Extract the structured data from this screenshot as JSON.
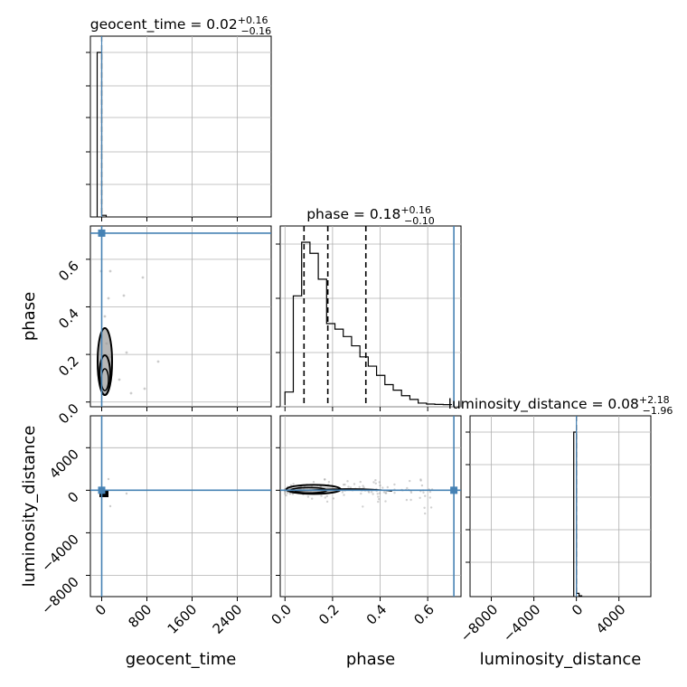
{
  "chart_data": {
    "type": "corner",
    "parameters": [
      "geocent_time",
      "phase",
      "luminosity_distance"
    ],
    "titles": [
      {
        "name": "geocent_time",
        "median": "0.02",
        "plus": "+0.16",
        "minus": "−0.16"
      },
      {
        "name": "phase",
        "median": "0.18",
        "plus": "+0.16",
        "minus": "−0.10"
      },
      {
        "name": "luminosity_distance",
        "median": "0.08",
        "plus": "+2.18",
        "minus": "−1.96"
      }
    ],
    "axis_labels": {
      "x": [
        "geocent_time",
        "phase",
        "luminosity_distance"
      ],
      "y": [
        "phase",
        "luminosity_distance"
      ]
    },
    "ranges": {
      "geocent_time": [
        -200,
        3000
      ],
      "phase": [
        -0.02,
        0.74
      ],
      "luminosity_distance": [
        -10000,
        7000
      ]
    },
    "ticks": {
      "geocent_time": {
        "values": [
          0,
          800,
          1600,
          2400
        ],
        "labels": [
          "0",
          "800",
          "1600",
          "2400"
        ]
      },
      "phase": {
        "values": [
          0.0,
          0.2,
          0.4,
          0.6
        ],
        "labels": [
          "0.0",
          "0.2",
          "0.4",
          "0.6"
        ]
      },
      "phase_y": {
        "values": [
          0.0,
          0.2,
          0.4,
          0.6
        ],
        "labels": [
          "0.0",
          "0.2",
          "0.4",
          "0.6"
        ]
      },
      "luminosity_distance_y": {
        "values": [
          -8000,
          -4000,
          0,
          4000
        ],
        "labels": [
          "−8000",
          "−4000",
          "0",
          "4000"
        ]
      },
      "luminosity_distance_x": {
        "values": [
          -8000,
          -4000,
          0,
          4000
        ],
        "labels": [
          "−8000",
          "−4000",
          "0",
          "4000"
        ]
      }
    },
    "truths": {
      "geocent_time": 0,
      "phase": 0.71,
      "luminosity_distance": 0
    },
    "quantiles": {
      "phase": [
        0.08,
        0.18,
        0.34
      ],
      "geocent_time": [
        0
      ],
      "luminosity_distance": [
        0
      ]
    },
    "hist_geocent_time": {
      "bin_edges": [
        -80,
        0,
        80
      ],
      "values": [
        1.0,
        0.01
      ]
    },
    "hist_phase": {
      "bin_edges": [
        0.0,
        0.035,
        0.07,
        0.105,
        0.14,
        0.175,
        0.21,
        0.245,
        0.28,
        0.315,
        0.35,
        0.385,
        0.42,
        0.455,
        0.49,
        0.525,
        0.56,
        0.595,
        0.63,
        0.665,
        0.7
      ],
      "values": [
        0.07,
        0.59,
        0.88,
        0.82,
        0.68,
        0.44,
        0.41,
        0.37,
        0.32,
        0.26,
        0.21,
        0.16,
        0.11,
        0.08,
        0.05,
        0.03,
        0.01,
        0.005,
        0.003,
        0.002
      ]
    },
    "hist_luminosity_distance": {
      "bin_edges": [
        -250,
        0,
        250,
        500
      ],
      "values": [
        1.0,
        0.02,
        0.005
      ]
    },
    "grid": true,
    "colors": {
      "truth": "#4682b4",
      "hist": "#000000",
      "grid": "#b0b0b0",
      "scatter": "#999999"
    }
  }
}
